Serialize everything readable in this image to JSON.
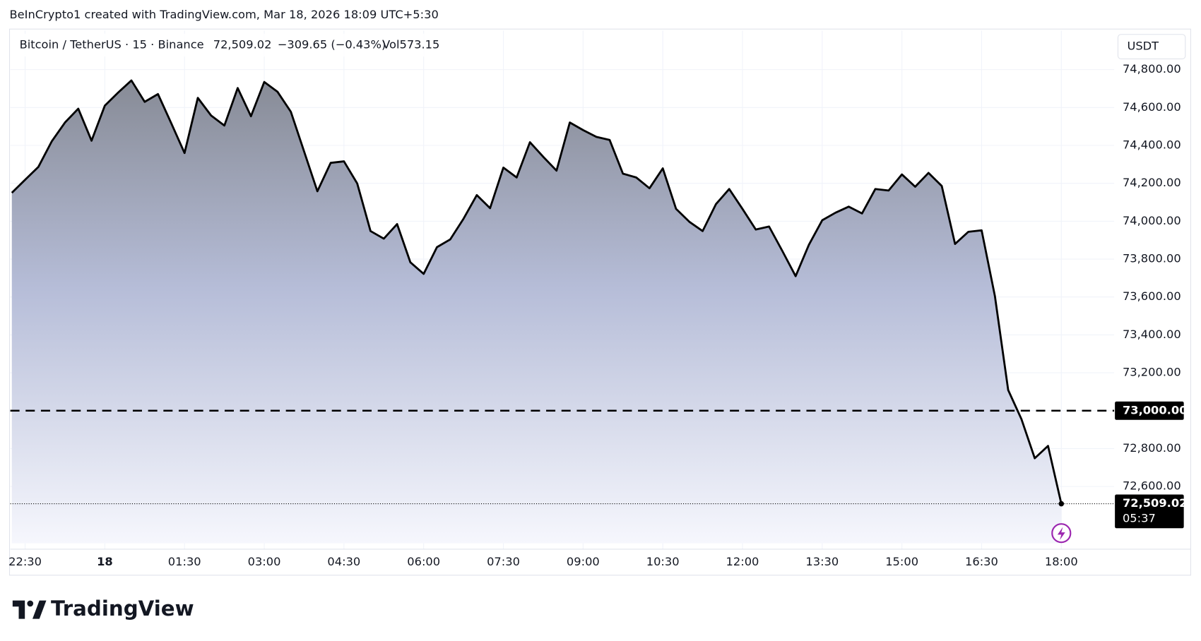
{
  "watermark": "BeInCrypto1 created with TradingView.com, Mar 18, 2026 18:09 UTC+5:30",
  "logo": "TradingView",
  "chart_data": {
    "type": "area",
    "title": "Bitcoin / TetherUS · 15 · Binance",
    "last_price": {
      "value": 72509.02,
      "label": "72,509.02"
    },
    "change": "−309.65 (−0.43%)",
    "volume": "Vol573.15",
    "currency": "USDT",
    "countdown": "05:37",
    "level": {
      "value": 73000,
      "label": "73,000.00"
    },
    "color": "#000000",
    "grid": true,
    "categories": [
      null,
      "22:30",
      null,
      null,
      null,
      null,
      null,
      "18",
      null,
      null,
      null,
      null,
      null,
      "01:30",
      null,
      null,
      null,
      null,
      null,
      "03:00",
      null,
      null,
      null,
      null,
      null,
      "04:30",
      null,
      null,
      null,
      null,
      null,
      "06:00",
      null,
      null,
      null,
      null,
      null,
      "07:30",
      null,
      null,
      null,
      null,
      null,
      "09:00",
      null,
      null,
      null,
      null,
      null,
      "10:30",
      null,
      null,
      null,
      null,
      null,
      "12:00",
      null,
      null,
      null,
      null,
      null,
      "13:30",
      null,
      null,
      null,
      null,
      null,
      "15:00",
      null,
      null,
      null,
      null,
      null,
      "16:30",
      null,
      null,
      null,
      null,
      null,
      "18:00"
    ],
    "values": [
      74150,
      74219,
      74287,
      74421,
      74521,
      74594,
      74425,
      74610,
      74679,
      74743,
      74630,
      74671,
      74517,
      74360,
      74651,
      74558,
      74505,
      74703,
      74554,
      74735,
      74683,
      74578,
      74368,
      74158,
      74308,
      74316,
      74199,
      73948,
      73908,
      73985,
      73783,
      73722,
      73863,
      73904,
      74013,
      74138,
      74069,
      74283,
      74231,
      74417,
      74340,
      74267,
      74521,
      74481,
      74445,
      74429,
      74251,
      74231,
      74174,
      74279,
      74065,
      73997,
      73948,
      74090,
      74170,
      74065,
      73956,
      73972,
      73843,
      73710,
      73876,
      74005,
      74045,
      74077,
      74041,
      74170,
      74162,
      74247,
      74182,
      74255,
      74186,
      73880,
      73944,
      73952,
      73605,
      73109,
      72955,
      72749,
      72814,
      72509.02
    ],
    "ylim": [
      72300,
      75000
    ],
    "yticks": [
      {
        "value": 72600,
        "label": "72,600.00"
      },
      {
        "value": 72800,
        "label": "72,800.00"
      },
      {
        "value": 73000,
        "label": "73,000.00"
      },
      {
        "value": 73200,
        "label": "73,200.00"
      },
      {
        "value": 73400,
        "label": "73,400.00"
      },
      {
        "value": 73600,
        "label": "73,600.00"
      },
      {
        "value": 73800,
        "label": "73,800.00"
      },
      {
        "value": 74000,
        "label": "74,000.00"
      },
      {
        "value": 74200,
        "label": "74,200.00"
      },
      {
        "value": 74400,
        "label": "74,400.00"
      },
      {
        "value": 74600,
        "label": "74,600.00"
      },
      {
        "value": 74800,
        "label": "74,800.00"
      }
    ]
  }
}
